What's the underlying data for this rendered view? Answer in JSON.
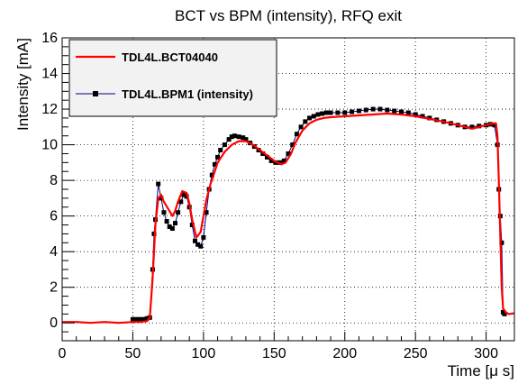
{
  "chart_data": {
    "type": "line",
    "title": "BCT vs BPM (intensity), RFQ exit",
    "xlabel": "Time [μ s]",
    "ylabel": "Intensity [mA]",
    "xlim": [
      0,
      320
    ],
    "ylim": [
      -1,
      16
    ],
    "x_ticks": [
      0,
      50,
      100,
      150,
      200,
      250,
      300
    ],
    "y_ticks": [
      0,
      2,
      4,
      6,
      8,
      10,
      12,
      14,
      16
    ],
    "grid": true,
    "legend_position": "top-left",
    "series": [
      {
        "name": "TDL4L.BCT04040",
        "color": "#ff0000",
        "marker": "line",
        "x": [
          0,
          10,
          20,
          30,
          40,
          50,
          55,
          60,
          62,
          64,
          66,
          68,
          70,
          72,
          75,
          78,
          80,
          82,
          85,
          88,
          90,
          92,
          95,
          98,
          100,
          102,
          105,
          108,
          110,
          115,
          120,
          125,
          130,
          135,
          140,
          145,
          150,
          155,
          158,
          162,
          165,
          170,
          175,
          180,
          185,
          190,
          200,
          210,
          220,
          230,
          240,
          250,
          260,
          270,
          280,
          285,
          290,
          295,
          300,
          305,
          307,
          308,
          309,
          310,
          311,
          312,
          314,
          316,
          320
        ],
        "y": [
          0.05,
          0.05,
          0.0,
          0.05,
          0.0,
          0.05,
          0.05,
          0.1,
          0.3,
          2.5,
          5.5,
          7.0,
          7.2,
          6.8,
          6.4,
          6.0,
          6.3,
          6.8,
          7.4,
          7.3,
          6.7,
          5.8,
          4.8,
          5.1,
          6.0,
          6.9,
          7.8,
          8.5,
          9.0,
          9.6,
          10.0,
          10.2,
          10.2,
          10.0,
          9.7,
          9.4,
          9.1,
          8.9,
          9.0,
          9.5,
          10.1,
          10.8,
          11.2,
          11.4,
          11.5,
          11.55,
          11.6,
          11.65,
          11.7,
          11.75,
          11.7,
          11.6,
          11.45,
          11.3,
          11.1,
          11.0,
          10.9,
          11.0,
          11.1,
          11.2,
          11.2,
          10.5,
          8.0,
          5.0,
          2.0,
          0.8,
          0.6,
          0.5,
          0.55
        ]
      },
      {
        "name": "TDL4L.BPM1 (intensity)",
        "color": "#000080",
        "marker": "square",
        "x": [
          50,
          52,
          54,
          56,
          58,
          60,
          62,
          64,
          65,
          66,
          68,
          70,
          72,
          74,
          76,
          78,
          80,
          82,
          84,
          86,
          88,
          90,
          92,
          94,
          96,
          98,
          100,
          102,
          104,
          106,
          108,
          110,
          112,
          115,
          118,
          120,
          122,
          125,
          128,
          130,
          133,
          136,
          139,
          142,
          145,
          148,
          151,
          154,
          157,
          160,
          163,
          166,
          169,
          172,
          175,
          178,
          181,
          184,
          187,
          190,
          195,
          200,
          205,
          210,
          215,
          220,
          225,
          230,
          235,
          240,
          245,
          250,
          255,
          260,
          265,
          270,
          275,
          280,
          285,
          290,
          295,
          300,
          303,
          306,
          308,
          309,
          310,
          311,
          312,
          313
        ],
        "y": [
          0.2,
          0.2,
          0.2,
          0.2,
          0.2,
          0.25,
          0.3,
          3.0,
          5.0,
          5.8,
          7.8,
          7.0,
          6.2,
          5.7,
          5.4,
          5.3,
          5.6,
          6.2,
          6.8,
          7.2,
          7.1,
          6.5,
          5.5,
          4.6,
          4.4,
          4.3,
          4.8,
          6.2,
          7.5,
          8.3,
          8.9,
          9.3,
          9.7,
          10.0,
          10.3,
          10.45,
          10.5,
          10.45,
          10.4,
          10.3,
          10.1,
          9.9,
          9.7,
          9.5,
          9.3,
          9.1,
          9.0,
          9.0,
          9.1,
          9.5,
          10.0,
          10.6,
          11.0,
          11.3,
          11.5,
          11.6,
          11.7,
          11.75,
          11.8,
          11.8,
          11.8,
          11.8,
          11.85,
          11.9,
          11.95,
          12.0,
          12.0,
          11.95,
          11.9,
          11.85,
          11.8,
          11.7,
          11.6,
          11.5,
          11.4,
          11.3,
          11.2,
          11.1,
          11.0,
          11.0,
          11.05,
          11.1,
          11.15,
          11.1,
          10.0,
          7.5,
          6.0,
          4.5,
          0.6,
          0.5
        ]
      }
    ]
  }
}
